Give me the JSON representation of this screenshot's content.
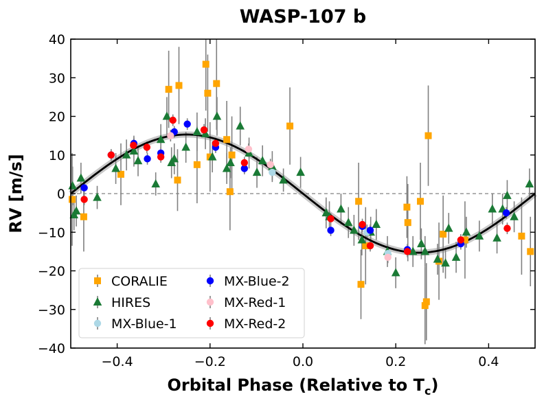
{
  "chart_data": {
    "type": "scatter",
    "title": "WASP-107 b",
    "xlabel": "Orbital Phase (Relative to T",
    "xlabel_sub": "c",
    "xlabel_end": ")",
    "ylabel": "RV [m/s]",
    "xlim": [
      -0.5,
      0.5
    ],
    "ylim": [
      -40,
      40
    ],
    "xticks": [
      -0.4,
      -0.2,
      0.0,
      0.2,
      0.4
    ],
    "xtick_labels": [
      "−0.4",
      "−0.2",
      "0.0",
      "0.2",
      "0.4"
    ],
    "yticks": [
      -40,
      -30,
      -20,
      -10,
      0,
      10,
      20,
      30,
      40
    ],
    "ytick_labels": [
      "−40",
      "−30",
      "−20",
      "−10",
      "0",
      "10",
      "20",
      "30",
      "40"
    ],
    "grid": false,
    "zero_line": true,
    "legend_position": "lower-left",
    "model": {
      "amplitude": 15.3,
      "phase_of_max": -0.25,
      "color": "#000000",
      "band_color": "#c8c8c8"
    },
    "series": [
      {
        "name": "CORALIE",
        "marker": "square",
        "color": "#FFA500",
        "points": [
          {
            "x": -0.497,
            "y": -1.5,
            "err": 12
          },
          {
            "x": -0.472,
            "y": -6,
            "err": 9
          },
          {
            "x": -0.392,
            "y": 5,
            "err": 8
          },
          {
            "x": -0.289,
            "y": 27,
            "err": 10
          },
          {
            "x": -0.27,
            "y": 3.5,
            "err": 8
          },
          {
            "x": -0.267,
            "y": 28,
            "err": 10
          },
          {
            "x": -0.228,
            "y": 7.5,
            "err": 10
          },
          {
            "x": -0.209,
            "y": 33.5,
            "err": 12
          },
          {
            "x": -0.205,
            "y": 26,
            "err": 10
          },
          {
            "x": -0.2,
            "y": 9.5,
            "err": 9
          },
          {
            "x": -0.186,
            "y": 28.5,
            "err": 12
          },
          {
            "x": -0.164,
            "y": 14,
            "err": 10
          },
          {
            "x": -0.157,
            "y": 0.5,
            "err": 10
          },
          {
            "x": -0.153,
            "y": 10,
            "err": 10
          },
          {
            "x": -0.028,
            "y": 17.5,
            "err": 10
          },
          {
            "x": 0.12,
            "y": -2,
            "err": 10
          },
          {
            "x": 0.125,
            "y": -23.5,
            "err": 9
          },
          {
            "x": 0.135,
            "y": -13.5,
            "err": 10
          },
          {
            "x": 0.224,
            "y": -3.5,
            "err": 8
          },
          {
            "x": 0.226,
            "y": -7.5,
            "err": 10
          },
          {
            "x": 0.253,
            "y": -2,
            "err": 10
          },
          {
            "x": 0.263,
            "y": -29,
            "err": 10
          },
          {
            "x": 0.266,
            "y": -28,
            "err": 10
          },
          {
            "x": 0.27,
            "y": 15,
            "err": 13
          },
          {
            "x": 0.293,
            "y": -17.5,
            "err": 10
          },
          {
            "x": 0.302,
            "y": -10.5,
            "err": 10
          },
          {
            "x": 0.349,
            "y": -12,
            "err": 10
          },
          {
            "x": 0.471,
            "y": -11,
            "err": 10
          },
          {
            "x": 0.49,
            "y": -15,
            "err": 9
          }
        ]
      },
      {
        "name": "HIRES",
        "marker": "triangle",
        "color": "#1a7a35",
        "points": [
          {
            "x": -0.496,
            "y": 2,
            "err": 5
          },
          {
            "x": -0.493,
            "y": -5.5,
            "err": 4
          },
          {
            "x": -0.488,
            "y": -4.5,
            "err": 4
          },
          {
            "x": -0.478,
            "y": 4,
            "err": 4
          },
          {
            "x": -0.443,
            "y": -1,
            "err": 3
          },
          {
            "x": -0.403,
            "y": 6.5,
            "err": 4
          },
          {
            "x": -0.38,
            "y": 10,
            "err": 4
          },
          {
            "x": -0.364,
            "y": 11,
            "err": 4
          },
          {
            "x": -0.355,
            "y": 8.5,
            "err": 4
          },
          {
            "x": -0.317,
            "y": 2.5,
            "err": 3
          },
          {
            "x": -0.306,
            "y": 14,
            "err": 4
          },
          {
            "x": -0.293,
            "y": 20,
            "err": 5
          },
          {
            "x": -0.283,
            "y": 8,
            "err": 4
          },
          {
            "x": -0.277,
            "y": 9,
            "err": 4
          },
          {
            "x": -0.252,
            "y": 12,
            "err": 4
          },
          {
            "x": -0.228,
            "y": 16,
            "err": 5
          },
          {
            "x": -0.21,
            "y": 15.5,
            "err": 4
          },
          {
            "x": -0.195,
            "y": 9.5,
            "err": 4
          },
          {
            "x": -0.185,
            "y": 20,
            "err": 5
          },
          {
            "x": -0.164,
            "y": 6.5,
            "err": 4
          },
          {
            "x": -0.156,
            "y": 8,
            "err": 4
          },
          {
            "x": -0.135,
            "y": 17.5,
            "err": 5
          },
          {
            "x": -0.116,
            "y": 10.5,
            "err": 4
          },
          {
            "x": -0.099,
            "y": 5.5,
            "err": 4
          },
          {
            "x": -0.087,
            "y": 8.5,
            "err": 4
          },
          {
            "x": -0.066,
            "y": 7,
            "err": 4
          },
          {
            "x": -0.042,
            "y": 3.5,
            "err": 3
          },
          {
            "x": -0.005,
            "y": 5.5,
            "err": 4
          },
          {
            "x": 0.05,
            "y": -5,
            "err": 4
          },
          {
            "x": 0.057,
            "y": -6,
            "err": 4
          },
          {
            "x": 0.082,
            "y": -4,
            "err": 4
          },
          {
            "x": 0.098,
            "y": -7.5,
            "err": 4
          },
          {
            "x": 0.11,
            "y": -9.5,
            "err": 4
          },
          {
            "x": 0.127,
            "y": -12,
            "err": 4
          },
          {
            "x": 0.146,
            "y": -10,
            "err": 4
          },
          {
            "x": 0.158,
            "y": -8,
            "err": 4
          },
          {
            "x": 0.182,
            "y": -15,
            "err": 4
          },
          {
            "x": 0.2,
            "y": -20.5,
            "err": 4
          },
          {
            "x": 0.237,
            "y": -15,
            "err": 4
          },
          {
            "x": 0.255,
            "y": -13,
            "err": 4
          },
          {
            "x": 0.263,
            "y": -15,
            "err": 4
          },
          {
            "x": 0.29,
            "y": -17,
            "err": 4
          },
          {
            "x": 0.307,
            "y": -18,
            "err": 4
          },
          {
            "x": 0.314,
            "y": -9,
            "err": 4
          },
          {
            "x": 0.33,
            "y": -16.5,
            "err": 4
          },
          {
            "x": 0.352,
            "y": -10,
            "err": 4
          },
          {
            "x": 0.38,
            "y": -11,
            "err": 4
          },
          {
            "x": 0.408,
            "y": -4,
            "err": 4
          },
          {
            "x": 0.418,
            "y": -11.5,
            "err": 4
          },
          {
            "x": 0.43,
            "y": -4,
            "err": 4
          },
          {
            "x": 0.44,
            "y": -0.5,
            "err": 4
          },
          {
            "x": 0.455,
            "y": -6,
            "err": 4
          },
          {
            "x": 0.488,
            "y": 2.5,
            "err": 4
          }
        ]
      },
      {
        "name": "MX-Blue-1",
        "marker": "circle",
        "color": "#add8e6",
        "points": [
          {
            "x": -0.066,
            "y": 5.5,
            "err": 2
          },
          {
            "x": 0.183,
            "y": -15.5,
            "err": 2
          },
          {
            "x": 0.138,
            "y": -10,
            "err": 2
          }
        ]
      },
      {
        "name": "MX-Blue-2",
        "marker": "circle",
        "color": "#0000ff",
        "points": [
          {
            "x": -0.471,
            "y": 1.5,
            "err": 1.5
          },
          {
            "x": -0.413,
            "y": 10,
            "err": 1.5
          },
          {
            "x": -0.364,
            "y": 13,
            "err": 1.5
          },
          {
            "x": -0.335,
            "y": 9,
            "err": 1.5
          },
          {
            "x": -0.306,
            "y": 10.5,
            "err": 1.5
          },
          {
            "x": -0.277,
            "y": 16,
            "err": 1.5
          },
          {
            "x": -0.249,
            "y": 18,
            "err": 1.5
          },
          {
            "x": -0.188,
            "y": 12,
            "err": 1.5
          },
          {
            "x": -0.126,
            "y": 6.5,
            "err": 1.5
          },
          {
            "x": 0.06,
            "y": -9.5,
            "err": 1.5
          },
          {
            "x": 0.128,
            "y": -8.5,
            "err": 1.5
          },
          {
            "x": 0.145,
            "y": -9.5,
            "err": 1.5
          },
          {
            "x": 0.225,
            "y": -14.5,
            "err": 1.5
          },
          {
            "x": 0.34,
            "y": -13,
            "err": 1.5
          },
          {
            "x": 0.438,
            "y": -5,
            "err": 1.5
          }
        ]
      },
      {
        "name": "MX-Red-1",
        "marker": "circle",
        "color": "#ffc0cb",
        "points": [
          {
            "x": -0.285,
            "y": 15,
            "err": 1.5
          },
          {
            "x": -0.117,
            "y": 11.5,
            "err": 1.5
          },
          {
            "x": -0.07,
            "y": 7.5,
            "err": 1.5
          },
          {
            "x": 0.183,
            "y": -16.5,
            "err": 1.5
          }
        ]
      },
      {
        "name": "MX-Red-2",
        "marker": "circle",
        "color": "#ff0000",
        "points": [
          {
            "x": -0.471,
            "y": -1.5,
            "err": 1.5
          },
          {
            "x": -0.413,
            "y": 10,
            "err": 1.5
          },
          {
            "x": -0.365,
            "y": 12.5,
            "err": 1.5
          },
          {
            "x": -0.336,
            "y": 12,
            "err": 1.5
          },
          {
            "x": -0.306,
            "y": 9.5,
            "err": 1.5
          },
          {
            "x": -0.28,
            "y": 19,
            "err": 1.5
          },
          {
            "x": -0.213,
            "y": 16.5,
            "err": 1.5
          },
          {
            "x": -0.188,
            "y": 13,
            "err": 1.5
          },
          {
            "x": -0.126,
            "y": 8,
            "err": 1.5
          },
          {
            "x": 0.06,
            "y": -6.5,
            "err": 1.5
          },
          {
            "x": 0.128,
            "y": -8,
            "err": 1.5
          },
          {
            "x": 0.145,
            "y": -13.5,
            "err": 1.5
          },
          {
            "x": 0.225,
            "y": -15,
            "err": 1.5
          },
          {
            "x": 0.34,
            "y": -12,
            "err": 1.5
          },
          {
            "x": 0.44,
            "y": -9,
            "err": 1.5
          }
        ]
      }
    ],
    "legend_order": [
      "CORALIE",
      "HIRES",
      "MX-Blue-1",
      "MX-Blue-2",
      "MX-Red-1",
      "MX-Red-2"
    ]
  }
}
